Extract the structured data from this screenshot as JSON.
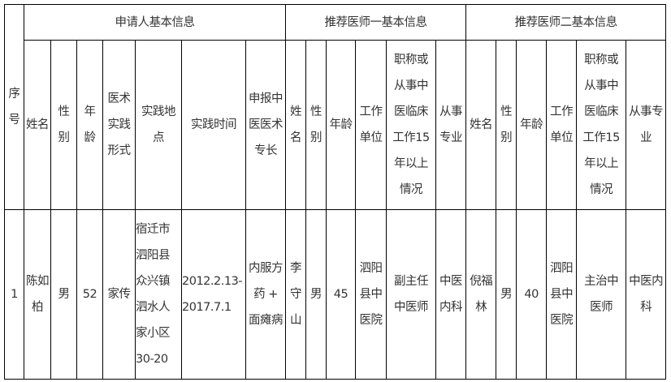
{
  "groups": {
    "seq": "序\n号",
    "applicant": "申请人基本信息",
    "doctor1": "推荐医师一基本信息",
    "doctor2": "推荐医师二基本信息"
  },
  "headers": {
    "applicant": [
      "姓名",
      "性\n别",
      "年\n龄",
      "医术\n实践\n形式",
      "实践地\n点",
      "实践时间",
      "申报中\n医医术\n专长"
    ],
    "doctor1": [
      "姓\n名",
      "性\n别",
      "年龄",
      "工作\n单位",
      "职称或\n从事中\n医临床\n工作15\n年以上\n情况",
      "从事\n专业"
    ],
    "doctor2": [
      "姓名",
      "性\n别",
      "年龄",
      "工作\n单位",
      "职称或\n从事中\n医临床\n工作15\n年以上\n情况",
      "从事专\n业"
    ]
  },
  "rows": [
    {
      "seq": "1",
      "applicant": [
        "陈如\n柏",
        "男",
        "52",
        "家传",
        "宿迁市\n泗阳县\n众兴镇\n泗水人\n家小区\n30-20",
        "2012.2.13-\n2017.7.1",
        "内服方\n药 +\n面瘫病"
      ],
      "doctor1": [
        "李\n守\n山",
        "男",
        "45",
        "泗阳\n县中\n医院",
        "副主任\n中医师",
        "中医\n内科"
      ],
      "doctor2": [
        "倪福\n林",
        "男",
        "40",
        "泗阳\n县中\n医院",
        "主治中\n医师",
        "中医内\n科"
      ]
    }
  ]
}
